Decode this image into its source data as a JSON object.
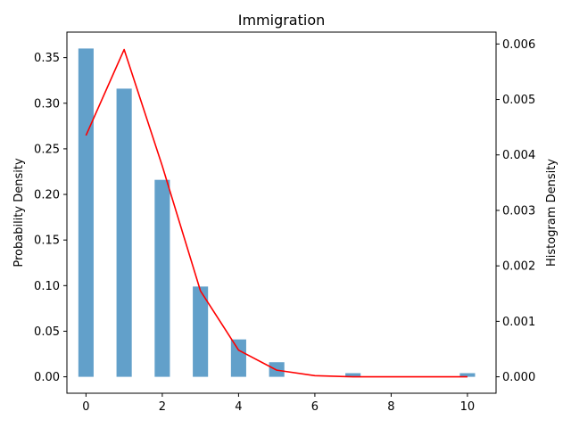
{
  "chart_data": {
    "type": "bar+line",
    "title": "Immigration",
    "xlabel": "",
    "ylabel_left": "Probability Density",
    "ylabel_right": "Histogram Density",
    "xlim": [
      -0.5,
      10.75
    ],
    "ylim_left": [
      -0.018,
      0.378
    ],
    "ylim_right": [
      -0.000296,
      0.006214
    ],
    "x_ticks": [
      0,
      2,
      4,
      6,
      8,
      10
    ],
    "y_left_ticks": [
      0.0,
      0.05,
      0.1,
      0.15,
      0.2,
      0.25,
      0.3,
      0.35
    ],
    "y_right_ticks": [
      0.0,
      0.001,
      0.002,
      0.003,
      0.004,
      0.005,
      0.006
    ],
    "bar_width": 0.4,
    "bars": {
      "name": "",
      "color": "#1f77b4",
      "axis": "left",
      "x": [
        0,
        1,
        2,
        3,
        4,
        5,
        7,
        10
      ],
      "values": [
        0.36,
        0.316,
        0.216,
        0.099,
        0.041,
        0.016,
        0.004,
        0.004
      ]
    },
    "line": {
      "name": "",
      "color": "#ff0000",
      "axis": "right",
      "x": [
        0,
        1,
        2,
        3,
        4,
        5,
        6,
        7,
        8,
        9,
        10
      ],
      "values": [
        0.00435,
        0.0059,
        0.0038,
        0.00155,
        0.00048,
        0.00012,
        2e-05,
        0.0,
        0.0,
        0.0,
        0.0
      ]
    }
  }
}
